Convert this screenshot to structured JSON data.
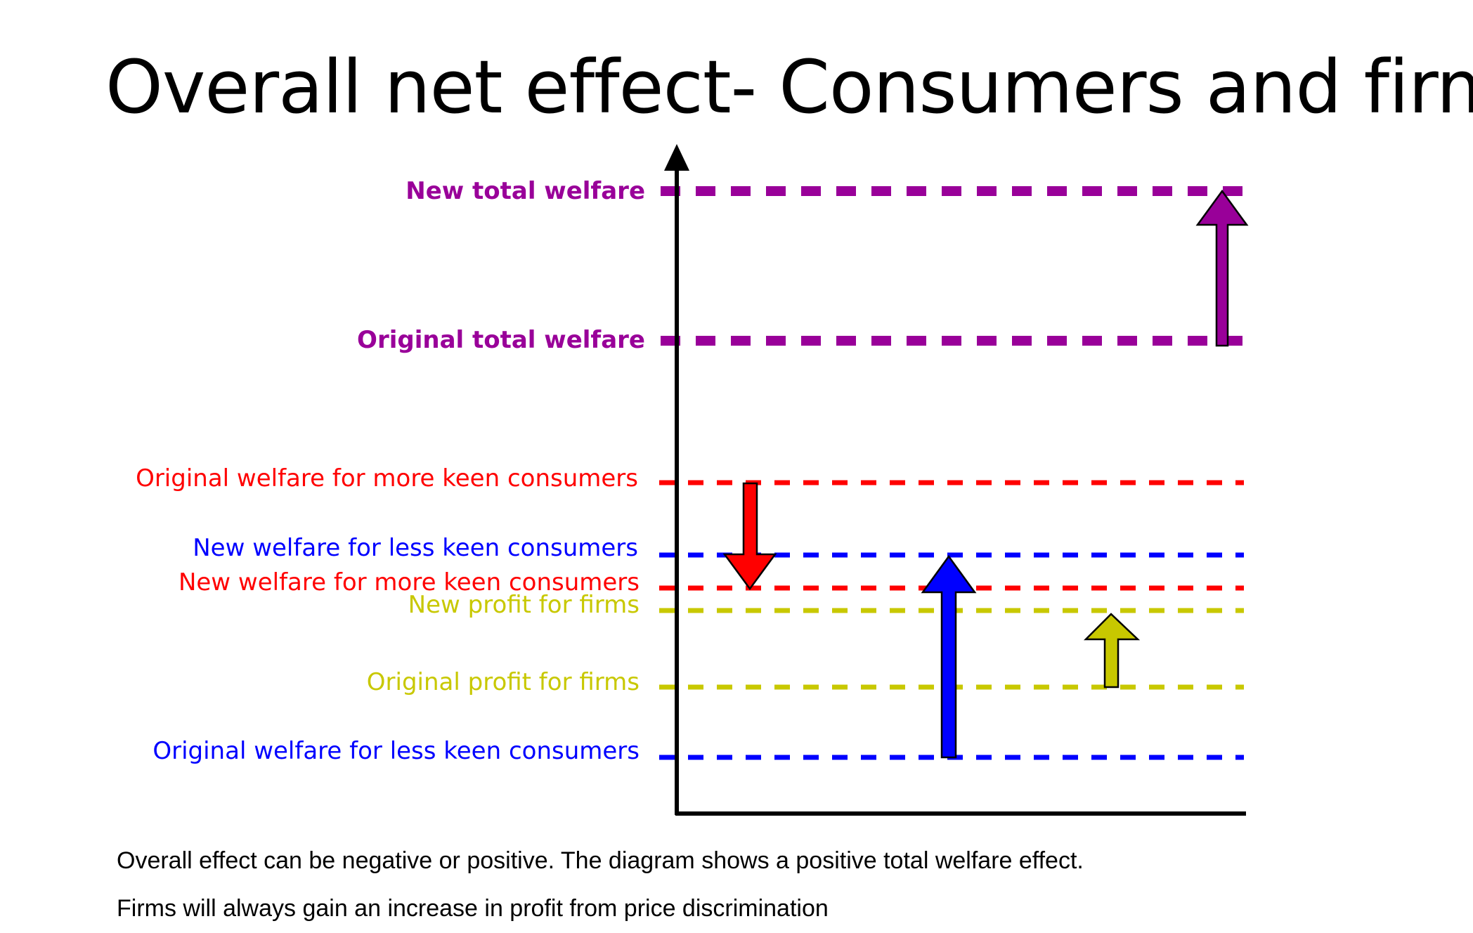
{
  "title": "Overall net effect- Consumers and firms",
  "colors": {
    "total": "#990099",
    "more_keen": "#ff0000",
    "less_keen": "#0000ff",
    "firms": "#c8c800",
    "axis": "#000000"
  },
  "levels": {
    "new_total_welfare": "New total welfare",
    "original_total_welfare": "Original total welfare",
    "original_more_keen": "Original welfare  for more keen consumers",
    "new_less_keen": "New welfare for less keen consumers",
    "new_more_keen": "New welfare for more keen consumers",
    "new_profit": "New profit for firms",
    "original_profit": "Original profit for firms",
    "original_less_keen": "Original welfare for less keen consumers"
  },
  "notes": [
    "Overall effect can be negative or positive. The diagram shows a positive total welfare effect.",
    "Firms will always gain an increase in profit from price discrimination"
  ]
}
